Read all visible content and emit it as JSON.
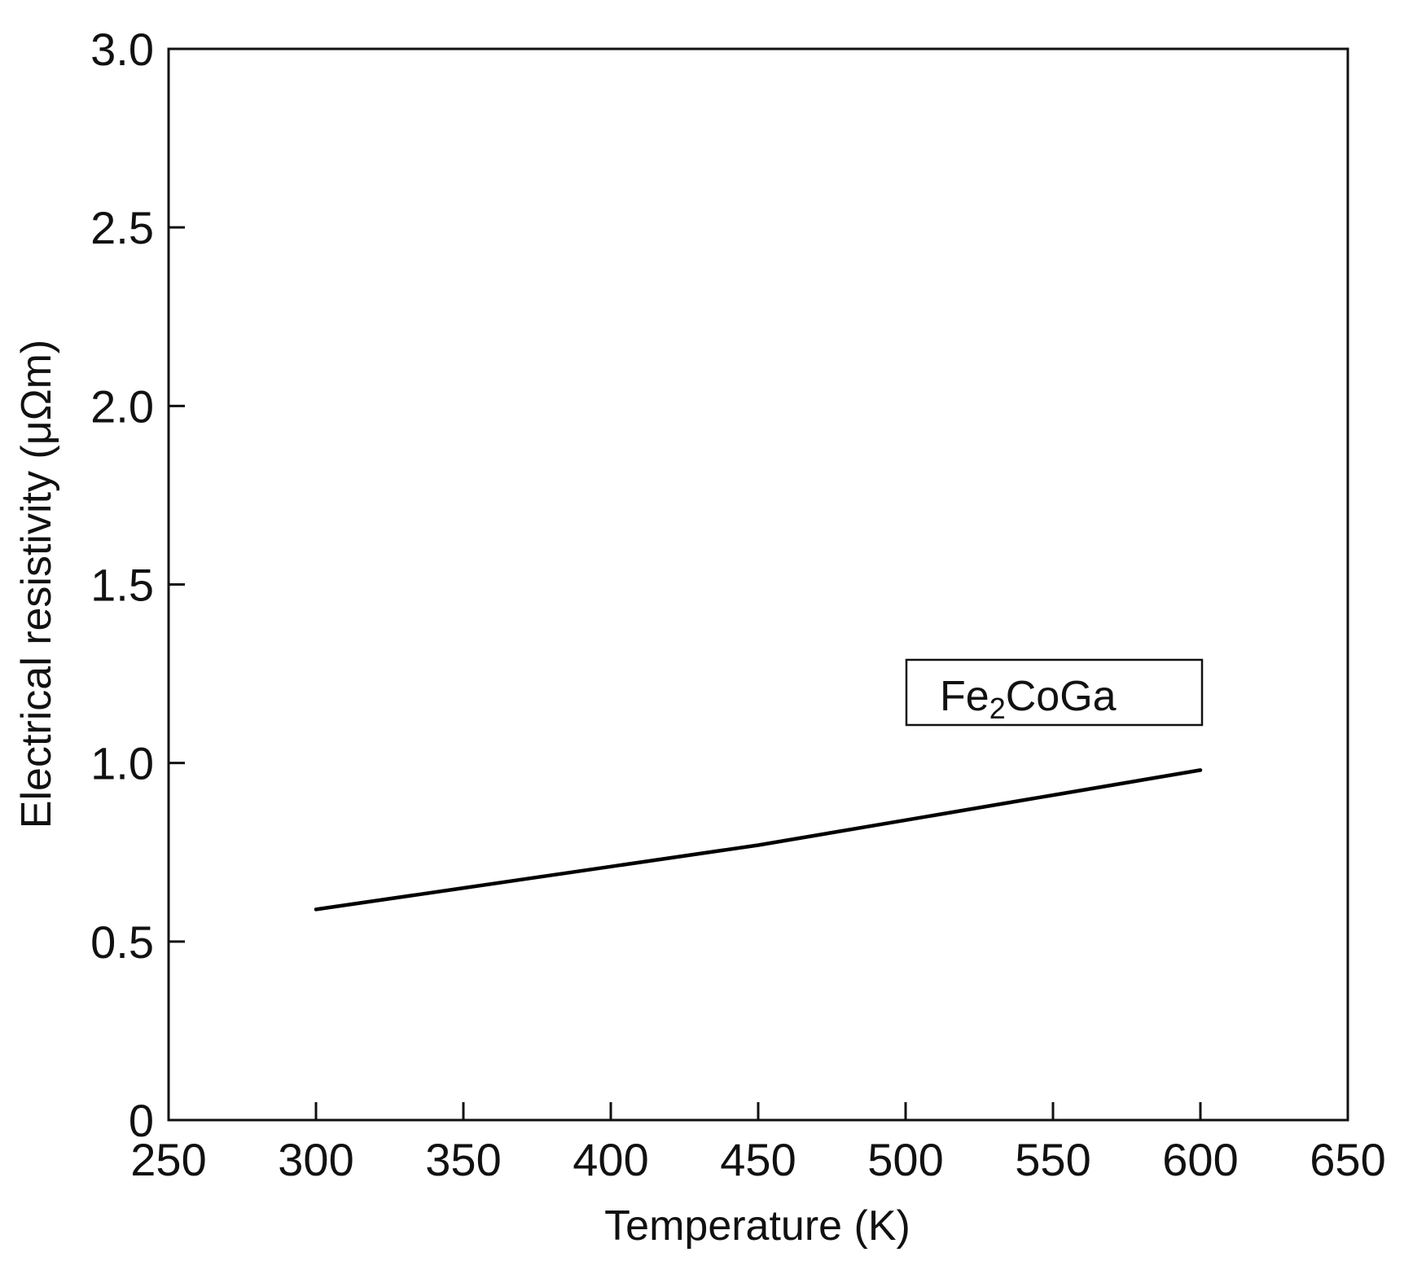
{
  "chart_data": {
    "type": "line",
    "title": "",
    "xlabel": "Temperature (K)",
    "ylabel": "Electrical resistivity (μΩm)",
    "xlim": [
      250,
      650
    ],
    "ylim": [
      0,
      3.0
    ],
    "x_ticks": [
      250,
      300,
      350,
      400,
      450,
      500,
      550,
      600,
      650
    ],
    "x_tick_labels": [
      "250",
      "300",
      "350",
      "400",
      "450",
      "500",
      "550",
      "600",
      "650"
    ],
    "y_ticks": [
      0,
      0.5,
      1.0,
      1.5,
      2.0,
      2.5,
      3.0
    ],
    "y_tick_labels": [
      "0",
      "0.5",
      "1.0",
      "1.5",
      "2.0",
      "2.5",
      "3.0"
    ],
    "grid": false,
    "legend_position": "right",
    "series": [
      {
        "name": "Fe2CoGa",
        "color": "#000000",
        "x": [
          300,
          350,
          400,
          450,
          500,
          550,
          600
        ],
        "y": [
          0.59,
          0.65,
          0.71,
          0.77,
          0.84,
          0.91,
          0.98
        ]
      }
    ],
    "legend": {
      "base": "Fe",
      "subscript": "2",
      "rest": "CoGa"
    }
  }
}
